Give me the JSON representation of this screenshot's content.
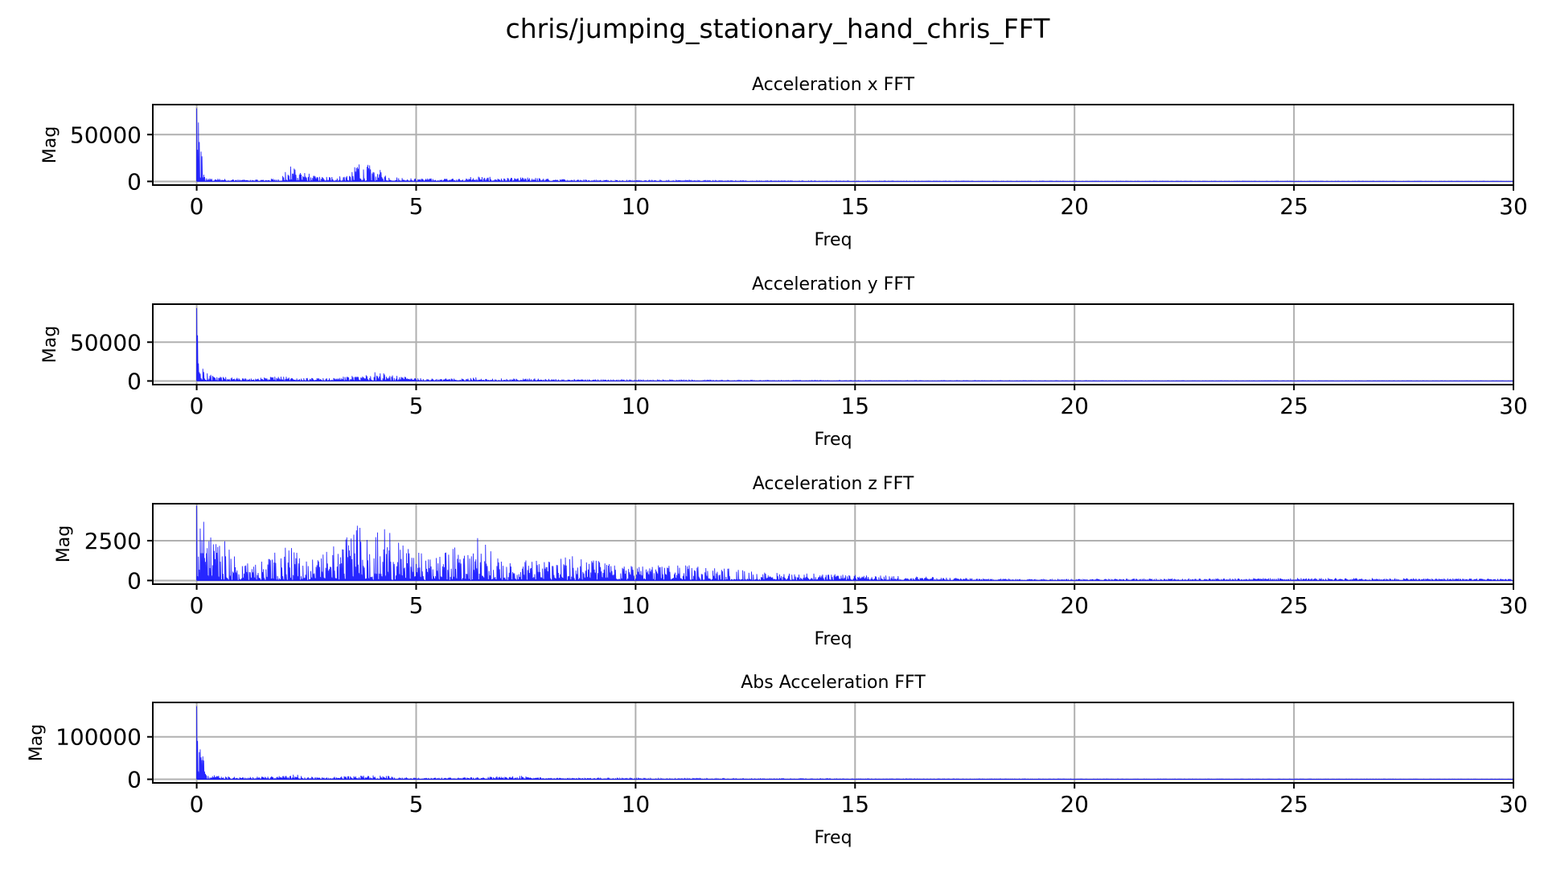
{
  "figure": {
    "title": "chris/jumping_stationary_hand_chris_FFT"
  },
  "colors": {
    "line": "#0000ff",
    "grid": "#b0b0b0"
  },
  "chart_data": [
    {
      "type": "line",
      "title": "Acceleration x FFT",
      "xlabel": "Freq",
      "ylabel": "Mag",
      "xlim": [
        -1,
        30
      ],
      "ylim": [
        -3900,
        82000
      ],
      "xticks": [
        0,
        5,
        10,
        15,
        20,
        25,
        30
      ],
      "yticks": [
        0,
        50000
      ],
      "grid": true,
      "profile": [
        {
          "x": 0.0,
          "y": 78000
        },
        {
          "x": 0.2,
          "y": 3500
        },
        {
          "x": 0.5,
          "y": 3000
        },
        {
          "x": 1.0,
          "y": 1800
        },
        {
          "x": 1.5,
          "y": 2000
        },
        {
          "x": 1.9,
          "y": 4000
        },
        {
          "x": 2.1,
          "y": 15000
        },
        {
          "x": 2.2,
          "y": 18000
        },
        {
          "x": 2.4,
          "y": 10000
        },
        {
          "x": 2.8,
          "y": 6000
        },
        {
          "x": 3.2,
          "y": 5000
        },
        {
          "x": 3.5,
          "y": 9000
        },
        {
          "x": 3.7,
          "y": 23000
        },
        {
          "x": 3.9,
          "y": 18000
        },
        {
          "x": 4.1,
          "y": 15000
        },
        {
          "x": 4.4,
          "y": 5000
        },
        {
          "x": 5.0,
          "y": 3000
        },
        {
          "x": 6.0,
          "y": 3500
        },
        {
          "x": 6.4,
          "y": 6000
        },
        {
          "x": 7.0,
          "y": 3500
        },
        {
          "x": 7.5,
          "y": 4500
        },
        {
          "x": 8.0,
          "y": 3000
        },
        {
          "x": 9.0,
          "y": 2000
        },
        {
          "x": 10.0,
          "y": 1200
        },
        {
          "x": 11.0,
          "y": 1200
        },
        {
          "x": 12.0,
          "y": 700
        },
        {
          "x": 15.0,
          "y": 400
        },
        {
          "x": 20.0,
          "y": 300
        },
        {
          "x": 25.0,
          "y": 250
        },
        {
          "x": 30.0,
          "y": 200
        }
      ]
    },
    {
      "type": "line",
      "title": "Acceleration y FFT",
      "xlabel": "Freq",
      "ylabel": "Mag",
      "xlim": [
        -1,
        30
      ],
      "ylim": [
        -4700,
        99000
      ],
      "xticks": [
        0,
        5,
        10,
        15,
        20,
        25,
        30
      ],
      "yticks": [
        0,
        50000
      ],
      "grid": true,
      "profile": [
        {
          "x": 0.0,
          "y": 94000
        },
        {
          "x": 0.2,
          "y": 11000
        },
        {
          "x": 0.4,
          "y": 7000
        },
        {
          "x": 0.8,
          "y": 4500
        },
        {
          "x": 1.2,
          "y": 3000
        },
        {
          "x": 2.0,
          "y": 7000
        },
        {
          "x": 2.4,
          "y": 4000
        },
        {
          "x": 3.0,
          "y": 3500
        },
        {
          "x": 3.6,
          "y": 7000
        },
        {
          "x": 3.9,
          "y": 9000
        },
        {
          "x": 4.2,
          "y": 14000
        },
        {
          "x": 4.5,
          "y": 7000
        },
        {
          "x": 5.0,
          "y": 4000
        },
        {
          "x": 6.0,
          "y": 3000
        },
        {
          "x": 6.4,
          "y": 5000
        },
        {
          "x": 7.0,
          "y": 3000
        },
        {
          "x": 7.5,
          "y": 3500
        },
        {
          "x": 8.5,
          "y": 2500
        },
        {
          "x": 10.0,
          "y": 1200
        },
        {
          "x": 12.0,
          "y": 800
        },
        {
          "x": 15.0,
          "y": 500
        },
        {
          "x": 20.0,
          "y": 400
        },
        {
          "x": 25.0,
          "y": 300
        },
        {
          "x": 30.0,
          "y": 250
        }
      ]
    },
    {
      "type": "line",
      "title": "Acceleration z FFT",
      "xlabel": "Freq",
      "ylabel": "Mag",
      "xlim": [
        -1,
        30
      ],
      "ylim": [
        -230,
        4820
      ],
      "xticks": [
        0,
        5,
        10,
        15,
        20,
        25,
        30
      ],
      "yticks": [
        0,
        2500
      ],
      "grid": true,
      "profile": [
        {
          "x": 0.0,
          "y": 4700
        },
        {
          "x": 0.3,
          "y": 2800
        },
        {
          "x": 0.5,
          "y": 3000
        },
        {
          "x": 1.0,
          "y": 1100
        },
        {
          "x": 1.5,
          "y": 1200
        },
        {
          "x": 2.0,
          "y": 2400
        },
        {
          "x": 2.5,
          "y": 1300
        },
        {
          "x": 3.0,
          "y": 2000
        },
        {
          "x": 3.3,
          "y": 2500
        },
        {
          "x": 3.7,
          "y": 3600
        },
        {
          "x": 4.0,
          "y": 2600
        },
        {
          "x": 4.3,
          "y": 3700
        },
        {
          "x": 4.6,
          "y": 2400
        },
        {
          "x": 5.0,
          "y": 1800
        },
        {
          "x": 5.5,
          "y": 1500
        },
        {
          "x": 6.0,
          "y": 2300
        },
        {
          "x": 6.4,
          "y": 2700
        },
        {
          "x": 7.0,
          "y": 1400
        },
        {
          "x": 7.5,
          "y": 1300
        },
        {
          "x": 8.0,
          "y": 1200
        },
        {
          "x": 8.5,
          "y": 1700
        },
        {
          "x": 9.0,
          "y": 1400
        },
        {
          "x": 9.5,
          "y": 1000
        },
        {
          "x": 10.0,
          "y": 900
        },
        {
          "x": 11.0,
          "y": 1000
        },
        {
          "x": 12.0,
          "y": 800
        },
        {
          "x": 13.0,
          "y": 500
        },
        {
          "x": 14.0,
          "y": 450
        },
        {
          "x": 15.0,
          "y": 350
        },
        {
          "x": 16.0,
          "y": 300
        },
        {
          "x": 17.0,
          "y": 200
        },
        {
          "x": 18.0,
          "y": 120
        },
        {
          "x": 20.0,
          "y": 100
        },
        {
          "x": 24.0,
          "y": 150
        },
        {
          "x": 27.0,
          "y": 150
        },
        {
          "x": 30.0,
          "y": 120
        }
      ]
    },
    {
      "type": "line",
      "title": "Abs Acceleration FFT",
      "xlabel": "Freq",
      "ylabel": "Mag",
      "xlim": [
        -1,
        30
      ],
      "ylim": [
        -8500,
        181000
      ],
      "xticks": [
        0,
        5,
        10,
        15,
        20,
        25,
        30
      ],
      "yticks": [
        0,
        100000
      ],
      "grid": true,
      "profile": [
        {
          "x": 0.0,
          "y": 172000
        },
        {
          "x": 0.2,
          "y": 13000
        },
        {
          "x": 0.5,
          "y": 8000
        },
        {
          "x": 1.0,
          "y": 5000
        },
        {
          "x": 2.0,
          "y": 9000
        },
        {
          "x": 2.2,
          "y": 13000
        },
        {
          "x": 2.5,
          "y": 6000
        },
        {
          "x": 3.0,
          "y": 5000
        },
        {
          "x": 3.7,
          "y": 9000
        },
        {
          "x": 4.2,
          "y": 10000
        },
        {
          "x": 4.6,
          "y": 5000
        },
        {
          "x": 5.0,
          "y": 3500
        },
        {
          "x": 6.0,
          "y": 4000
        },
        {
          "x": 6.4,
          "y": 6000
        },
        {
          "x": 7.4,
          "y": 8000
        },
        {
          "x": 8.0,
          "y": 3500
        },
        {
          "x": 10.0,
          "y": 2000
        },
        {
          "x": 12.0,
          "y": 1500
        },
        {
          "x": 15.0,
          "y": 1000
        },
        {
          "x": 20.0,
          "y": 700
        },
        {
          "x": 25.0,
          "y": 600
        },
        {
          "x": 30.0,
          "y": 500
        }
      ]
    }
  ]
}
